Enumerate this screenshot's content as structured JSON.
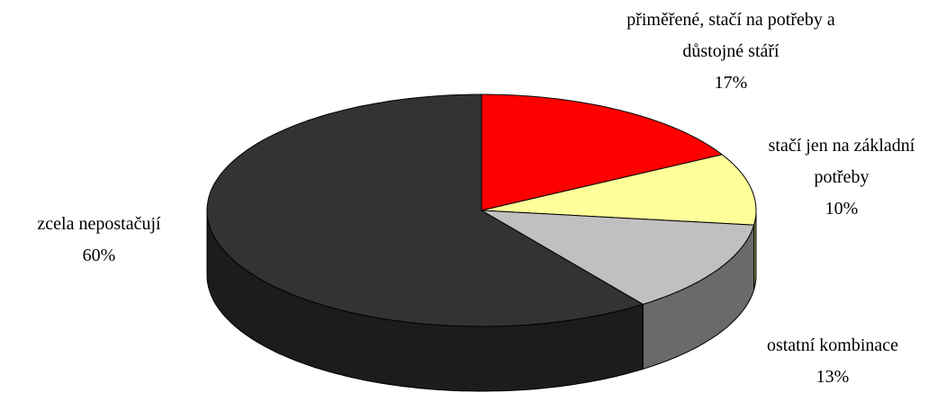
{
  "chart_data": {
    "type": "pie3d",
    "categories": [
      "přiměřené, stačí na potřeby a důstojné stáří",
      "stačí jen na základní potřeby",
      "ostatní kombinace",
      "zcela nepostačují"
    ],
    "values": [
      17,
      10,
      13,
      60
    ],
    "value_labels": [
      "17%",
      "10%",
      "13%",
      "60%"
    ],
    "colors": [
      "#ff0000",
      "#ffff99",
      "#c0c0c0",
      "#333333"
    ]
  }
}
